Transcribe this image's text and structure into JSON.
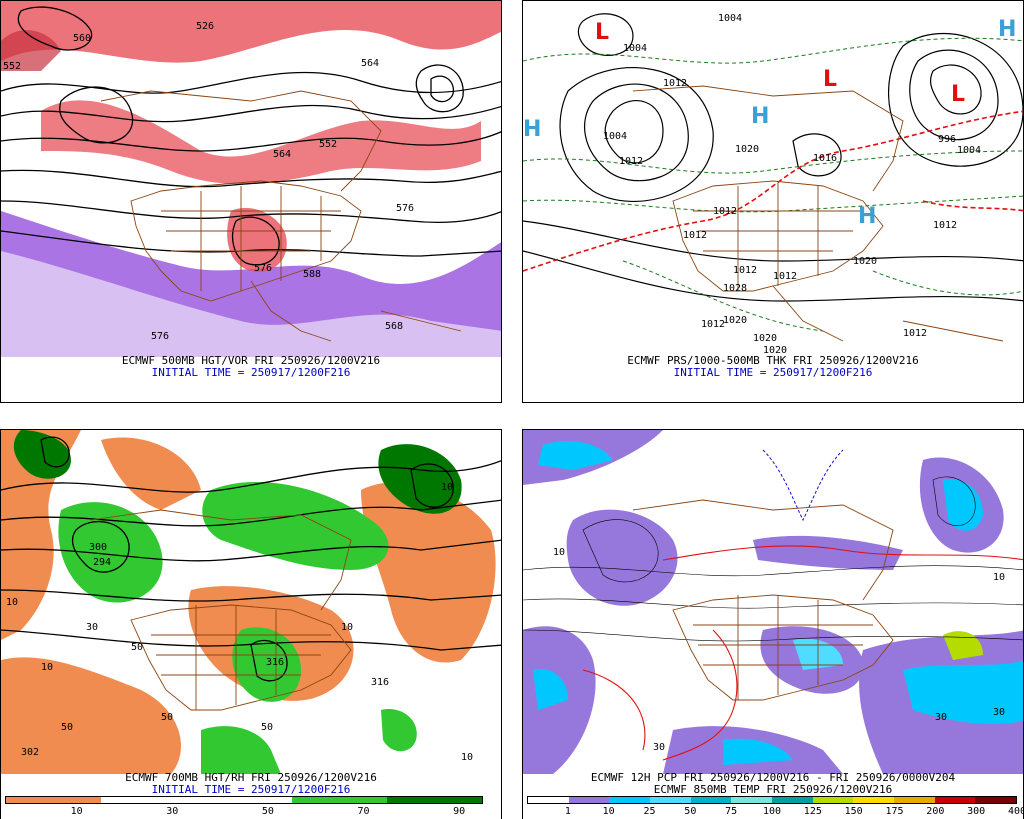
{
  "panels": {
    "p1": {
      "caption": "ECMWF 500MB HGT/VOR FRI 250926/1200V216",
      "initial": "INITIAL TIME = 250917/1200F216",
      "contour_labels": [
        "552",
        "526",
        "564",
        "552",
        "576",
        "576",
        "588",
        "568",
        "560",
        "576",
        "564"
      ]
    },
    "p2": {
      "caption": "ECMWF PRS/1000-500MB THK FRI 250926/1200V216",
      "initial": "INITIAL TIME = 250917/1200F216",
      "contour_labels": [
        "1004",
        "1004",
        "1012",
        "1012",
        "1020",
        "1020",
        "1012",
        "1012",
        "1004",
        "996",
        "1004",
        "1012",
        "1020",
        "1012",
        "1020",
        "1012",
        "1020",
        "1012",
        "1028",
        "1012",
        "1016"
      ],
      "high_symbol": "H",
      "low_symbol": "L"
    },
    "p3": {
      "caption": "ECMWF 700MB HGT/RH FRI 250926/1200V216",
      "initial": "INITIAL TIME = 250917/1200F216",
      "contour_labels": [
        "300",
        "294",
        "10",
        "30",
        "50",
        "10",
        "10",
        "50",
        "316",
        "50",
        "10",
        "302",
        "50",
        "10",
        "316"
      ],
      "colorbar_ticks": [
        "10",
        "30",
        "50",
        "70",
        "90"
      ],
      "colorbar_colors": [
        "#f08c50",
        "#f08c50",
        "#ffffff",
        "#ffffff",
        "#ffffff",
        "#ffffff",
        "#32c832",
        "#32c832",
        "#007800",
        "#007800"
      ]
    },
    "p4": {
      "caption": "ECMWF 12H PCP FRI 250926/1200V216 - FRI 250926/0000V204",
      "caption2": "ECMWF 850MB TEMP FRI 250926/1200V216",
      "contour_labels": [
        "30",
        "30",
        "30",
        "10",
        "10"
      ],
      "colorbar_ticks": [
        "1",
        "10",
        "25",
        "50",
        "75",
        "100",
        "125",
        "150",
        "175",
        "200",
        "300",
        "400"
      ],
      "colorbar_colors": [
        "#ffffff",
        "#9678dc",
        "#00c8ff",
        "#50dcff",
        "#00b4c8",
        "#78e6dc",
        "#00a0a0",
        "#b4dc00",
        "#ffdc00",
        "#e6aa00",
        "#c80000",
        "#780000"
      ]
    }
  }
}
